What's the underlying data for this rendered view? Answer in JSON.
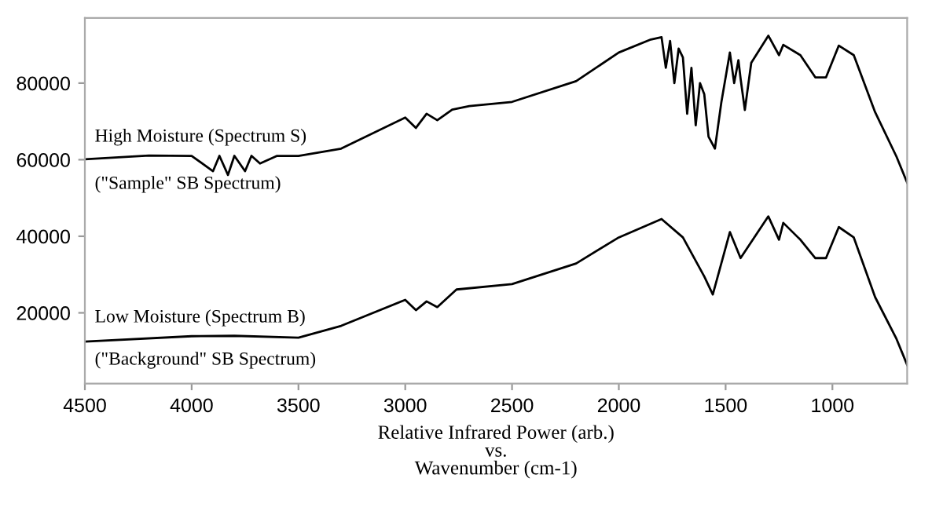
{
  "chart_data": {
    "type": "line",
    "xlabel": "Relative Infrared Power (arb.)\nvs.\nWavenumber (cm-1)",
    "xlim": [
      4500,
      650
    ],
    "xticks": [
      4500,
      4000,
      3500,
      3000,
      2500,
      2000,
      1500,
      1000
    ],
    "ylim": [
      1500,
      97000
    ],
    "yticks": [
      20000,
      40000,
      60000,
      80000
    ],
    "grid": false,
    "legend": false,
    "marker": "none",
    "line_style": "solid",
    "series": [
      {
        "color": "#000000",
        "x": [
          4500,
          4200,
          4000,
          3900,
          3870,
          3830,
          3800,
          3750,
          3720,
          3680,
          3600,
          3500,
          3300,
          3000,
          2950,
          2900,
          2850,
          2780,
          2700,
          2500,
          2200,
          2000,
          1850,
          1800,
          1780,
          1760,
          1740,
          1720,
          1700,
          1680,
          1660,
          1640,
          1620,
          1600,
          1580,
          1550,
          1520,
          1480,
          1460,
          1440,
          1430,
          1410,
          1380,
          1300,
          1250,
          1230,
          1150,
          1080,
          1030,
          970,
          900,
          800,
          700,
          650
        ],
        "values": [
          60100,
          61100,
          61000,
          57000,
          61000,
          56000,
          61000,
          57000,
          61000,
          59000,
          61000,
          61000,
          62900,
          71000,
          68300,
          72000,
          70300,
          73100,
          74000,
          75100,
          80500,
          88000,
          91400,
          92000,
          84000,
          91000,
          80000,
          89000,
          86700,
          72000,
          84000,
          69000,
          80000,
          77100,
          66000,
          62900,
          75000,
          88000,
          80000,
          86000,
          81200,
          73000,
          85300,
          92400,
          87300,
          90000,
          87300,
          81500,
          81500,
          89800,
          87300,
          72400,
          60800,
          54000
        ]
      },
      {
        "color": "#000000",
        "x": [
          4500,
          4000,
          3800,
          3500,
          3300,
          3000,
          2950,
          2900,
          2850,
          2760,
          2500,
          2200,
          2000,
          1800,
          1700,
          1600,
          1560,
          1480,
          1430,
          1300,
          1250,
          1230,
          1150,
          1080,
          1030,
          970,
          900,
          800,
          700,
          650
        ],
        "values": [
          12500,
          13900,
          14000,
          13500,
          16600,
          23400,
          20700,
          23000,
          21500,
          26100,
          27500,
          32900,
          39700,
          44500,
          39700,
          29500,
          24800,
          41100,
          34300,
          45200,
          39100,
          43500,
          39100,
          34300,
          34300,
          42400,
          39700,
          24100,
          13200,
          6400
        ]
      }
    ],
    "annotations": [
      "High Moisture (Spectrum S)",
      "(\"Sample\" SB Spectrum)",
      "Low Moisture (Spectrum B)",
      "(\"Background\" SB Spectrum)"
    ]
  }
}
